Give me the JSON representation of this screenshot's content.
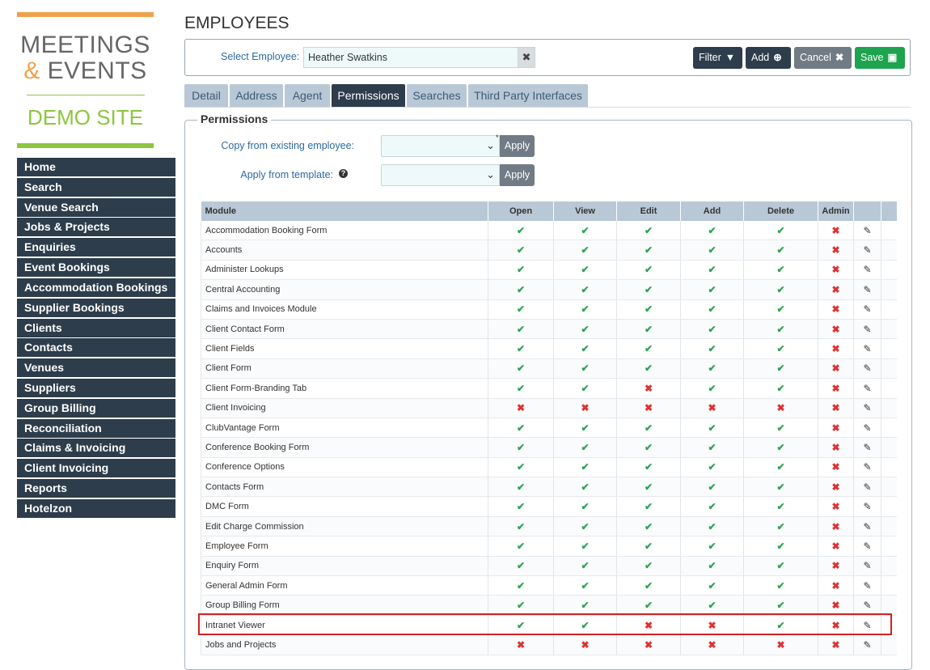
{
  "logo": {
    "line1": "MEETINGS",
    "amp": "&",
    "line2_rest": " EVENTS",
    "line3": "DEMO SITE"
  },
  "sidebar": {
    "items": [
      {
        "label": "Home"
      },
      {
        "label": "Search"
      },
      {
        "label": "Venue Search"
      },
      {
        "label": "Jobs & Projects"
      },
      {
        "label": "Enquiries"
      },
      {
        "label": "Event Bookings"
      },
      {
        "label": "Accommodation Bookings"
      },
      {
        "label": "Supplier Bookings"
      },
      {
        "label": "Clients"
      },
      {
        "label": "Contacts"
      },
      {
        "label": "Venues"
      },
      {
        "label": "Suppliers"
      },
      {
        "label": "Group Billing"
      },
      {
        "label": "Reconciliation"
      },
      {
        "label": "Claims & Invoicing"
      },
      {
        "label": "Client Invoicing"
      },
      {
        "label": "Reports"
      },
      {
        "label": "Hotelzon"
      }
    ]
  },
  "header": {
    "title": "EMPLOYEES"
  },
  "employee_select": {
    "label": "Select Employee:",
    "value": "Heather Swatkins"
  },
  "toolbar": {
    "filter": "Filter",
    "add": "Add",
    "cancel": "Cancel",
    "save": "Save"
  },
  "tabs": [
    {
      "label": "Detail"
    },
    {
      "label": "Address"
    },
    {
      "label": "Agent"
    },
    {
      "label": "Permissions",
      "active": true
    },
    {
      "label": "Searches"
    },
    {
      "label": "Third Party Interfaces"
    }
  ],
  "permissions": {
    "legend": "Permissions",
    "copy_label": "Copy from existing employee:",
    "template_label": "Apply from template:",
    "apply_label": "Apply",
    "columns": [
      "Module",
      "Open",
      "View",
      "Edit",
      "Add",
      "Delete",
      "Admin"
    ],
    "rows": [
      {
        "module": "Accommodation Booking Form",
        "perms": [
          1,
          1,
          1,
          1,
          1,
          0
        ]
      },
      {
        "module": "Accounts",
        "perms": [
          1,
          1,
          1,
          1,
          1,
          0
        ]
      },
      {
        "module": "Administer Lookups",
        "perms": [
          1,
          1,
          1,
          1,
          1,
          0
        ]
      },
      {
        "module": "Central Accounting",
        "perms": [
          1,
          1,
          1,
          1,
          1,
          0
        ]
      },
      {
        "module": "Claims and Invoices Module",
        "perms": [
          1,
          1,
          1,
          1,
          1,
          0
        ]
      },
      {
        "module": "Client Contact Form",
        "perms": [
          1,
          1,
          1,
          1,
          1,
          0
        ]
      },
      {
        "module": "Client Fields",
        "perms": [
          1,
          1,
          1,
          1,
          1,
          0
        ]
      },
      {
        "module": "Client Form",
        "perms": [
          1,
          1,
          1,
          1,
          1,
          0
        ]
      },
      {
        "module": "Client Form-Branding Tab",
        "perms": [
          1,
          1,
          0,
          1,
          1,
          0
        ]
      },
      {
        "module": "Client Invoicing",
        "perms": [
          0,
          0,
          0,
          0,
          0,
          0
        ]
      },
      {
        "module": "ClubVantage Form",
        "perms": [
          1,
          1,
          1,
          1,
          1,
          0
        ]
      },
      {
        "module": "Conference Booking Form",
        "perms": [
          1,
          1,
          1,
          1,
          1,
          0
        ]
      },
      {
        "module": "Conference Options",
        "perms": [
          1,
          1,
          1,
          1,
          1,
          0
        ]
      },
      {
        "module": "Contacts Form",
        "perms": [
          1,
          1,
          1,
          1,
          1,
          0
        ]
      },
      {
        "module": "DMC Form",
        "perms": [
          1,
          1,
          1,
          1,
          1,
          0
        ]
      },
      {
        "module": "Edit Charge Commission",
        "perms": [
          1,
          1,
          1,
          1,
          1,
          0
        ]
      },
      {
        "module": "Employee Form",
        "perms": [
          1,
          1,
          1,
          1,
          1,
          0
        ]
      },
      {
        "module": "Enquiry Form",
        "perms": [
          1,
          1,
          1,
          1,
          1,
          0
        ]
      },
      {
        "module": "General Admin Form",
        "perms": [
          1,
          1,
          1,
          1,
          1,
          0
        ]
      },
      {
        "module": "Group Billing Form",
        "perms": [
          1,
          1,
          1,
          1,
          1,
          0
        ]
      },
      {
        "module": "Intranet Viewer",
        "perms": [
          1,
          1,
          0,
          0,
          1,
          0
        ]
      },
      {
        "module": "Jobs and Projects",
        "perms": [
          0,
          0,
          0,
          0,
          0,
          0
        ]
      }
    ]
  },
  "colors": {
    "nav_bg": "#2d3d4b",
    "yes": "#2ea44f",
    "no": "#e03131",
    "save": "#1ea34f",
    "highlight": "#d42020"
  },
  "icons": {
    "check": "check-icon",
    "cross": "cross-icon",
    "edit": "pencil-icon"
  }
}
